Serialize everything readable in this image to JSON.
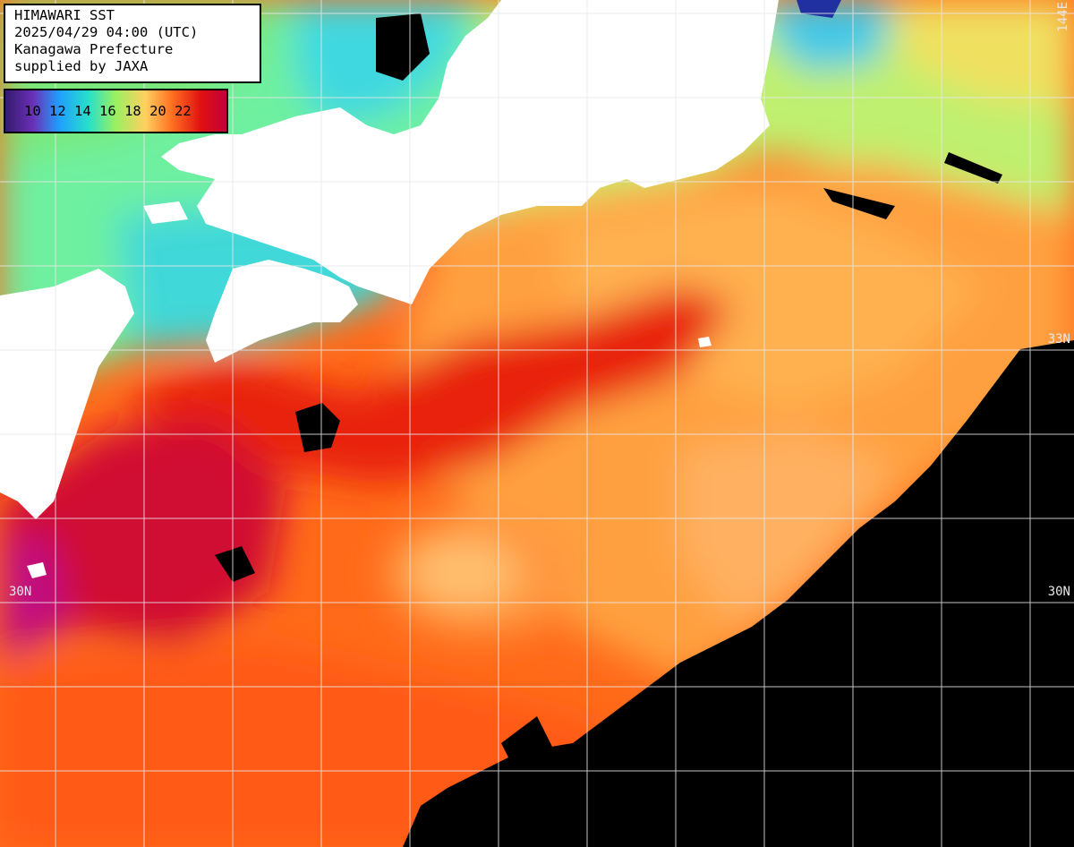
{
  "info": {
    "title": "HIMAWARI SST",
    "timestamp": "2025/04/29 04:00 (UTC)",
    "region": "Kanagawa Prefecture",
    "credit": "supplied by JAXA"
  },
  "legend": {
    "ticks": [
      "10",
      "12",
      "14",
      "16",
      "18",
      "20",
      "22"
    ],
    "colors": [
      "#301a6a",
      "#6a2fb5",
      "#1fa0ff",
      "#28e0c8",
      "#9cf060",
      "#ffd060",
      "#ff7020",
      "#e01010",
      "#c00040"
    ]
  },
  "grid_labels": {
    "lat_33n": "33N",
    "lat_30n": "30N",
    "lon_144e": "144E"
  },
  "colors": {
    "land": "#ffffff",
    "no_data": "#000000",
    "grid": "#e0e0e0"
  }
}
